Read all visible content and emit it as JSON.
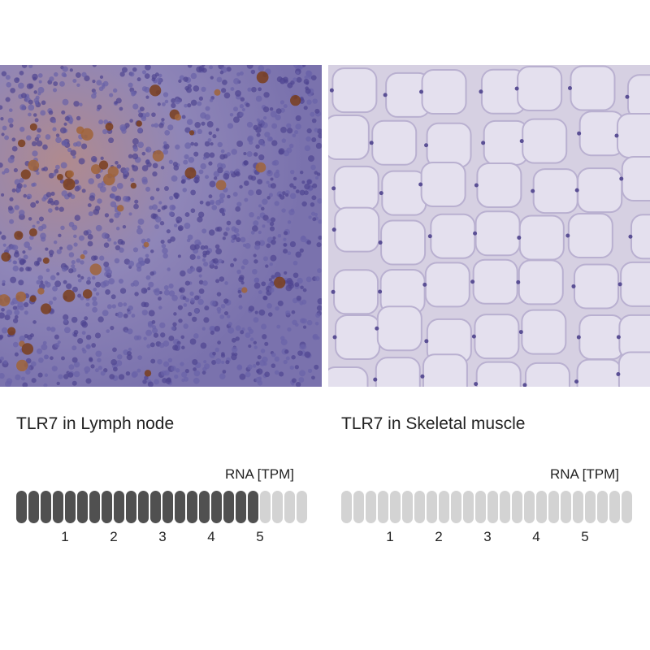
{
  "panels": [
    {
      "title": "TLR7 in Lymph node",
      "rna_label": "RNA [TPM]",
      "segments_total": 24,
      "segments_filled": 20,
      "ticks": [
        "1",
        "2",
        "3",
        "4",
        "5"
      ],
      "fill_color": "#505050",
      "empty_color": "#d3d3d3"
    },
    {
      "title": "TLR7 in Skeletal muscle",
      "rna_label": "RNA [TPM]",
      "segments_total": 24,
      "segments_filled": 0,
      "ticks": [
        "1",
        "2",
        "3",
        "4",
        "5"
      ],
      "fill_color": "#505050",
      "empty_color": "#d3d3d3"
    }
  ]
}
